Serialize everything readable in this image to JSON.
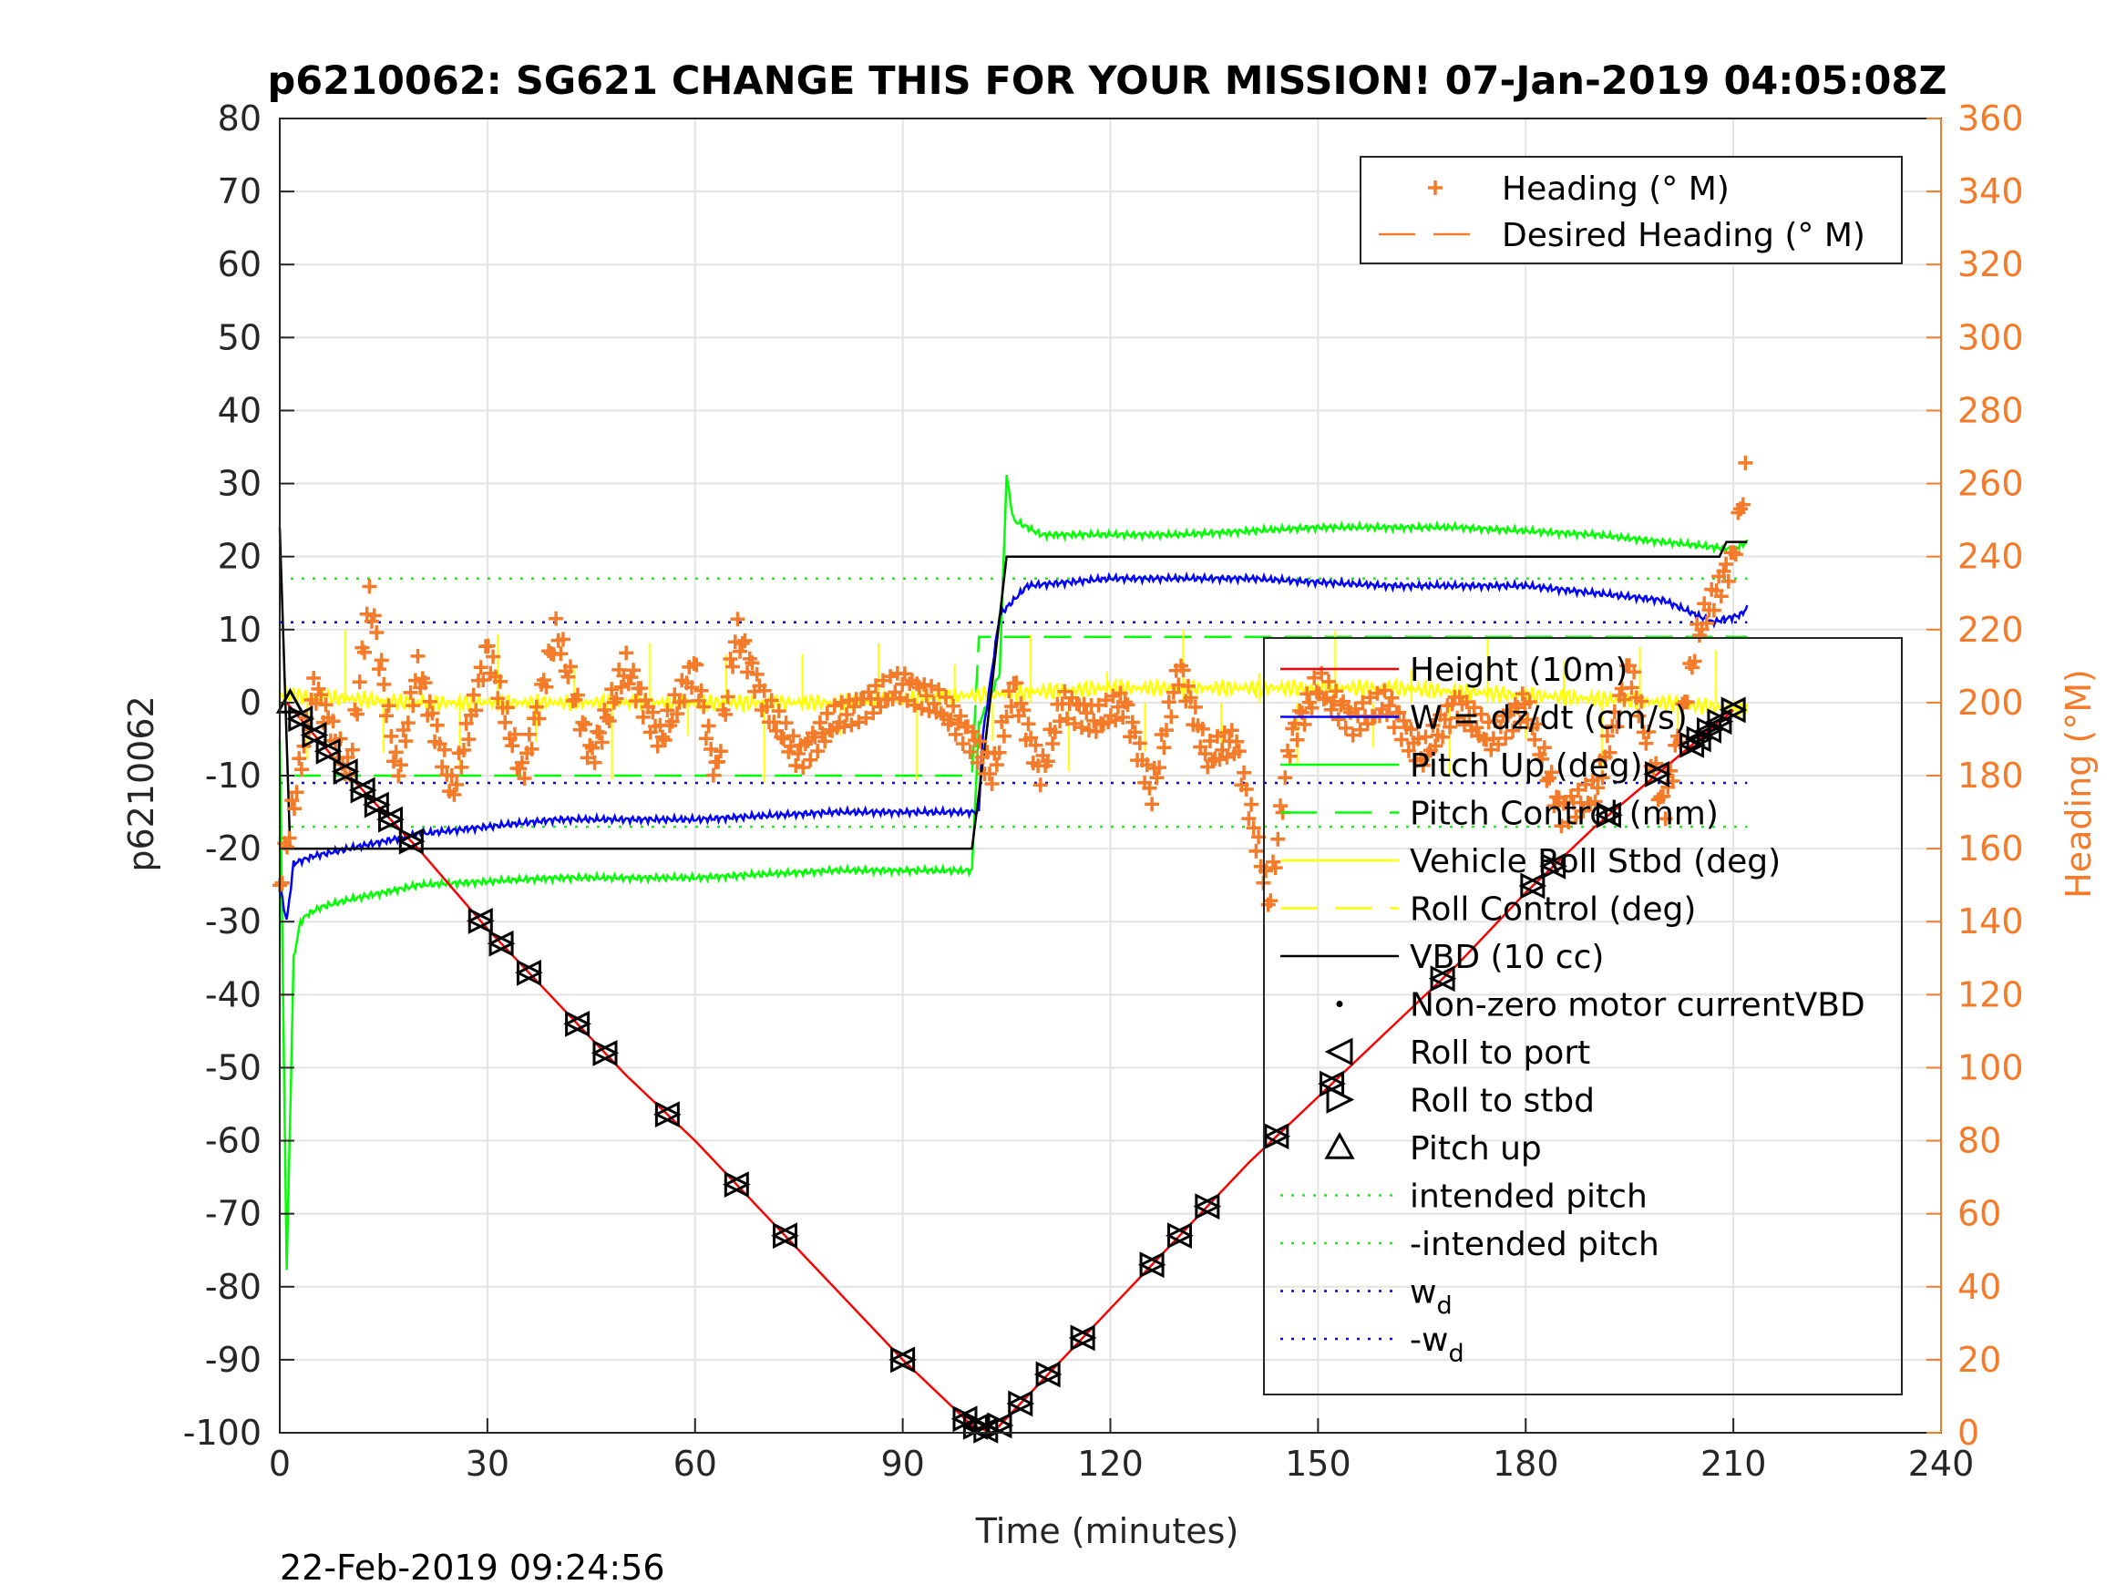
{
  "chart_data": {
    "type": "line",
    "title": "p6210062: SG621 CHANGE THIS FOR YOUR MISSION! 07-Jan-2019 04:05:08Z",
    "xlabel": "Time (minutes)",
    "ylabel": "p6210062",
    "y2label": "Heading (°M)",
    "xlim": [
      0,
      240
    ],
    "ylim": [
      -100,
      80
    ],
    "y2lim": [
      0,
      360
    ],
    "xticks": [
      "0",
      "30",
      "60",
      "90",
      "120",
      "150",
      "180",
      "210",
      "240"
    ],
    "yticks": [
      "80",
      "70",
      "60",
      "50",
      "40",
      "30",
      "20",
      "10",
      "0",
      "-10",
      "-20",
      "-30",
      "-40",
      "-50",
      "-60",
      "-70",
      "-80",
      "-90",
      "-100"
    ],
    "y2ticks": [
      "360",
      "340",
      "320",
      "300",
      "280",
      "260",
      "240",
      "220",
      "200",
      "180",
      "160",
      "140",
      "120",
      "100",
      "80",
      "60",
      "40",
      "20",
      "0"
    ],
    "grid": true,
    "footer": "22-Feb-2019 09:24:56",
    "colors": {
      "height": "#ff0000",
      "w": "#0000ff",
      "pitch": "#00ff00",
      "roll": "#ffff00",
      "vbd": "#000000",
      "heading": "#f47b2a"
    },
    "legend_left": {
      "placement": "top-right",
      "entries": [
        "Heading (° M)",
        "Desired Heading (° M)"
      ]
    },
    "legend_right": {
      "placement": "center-right",
      "entries": [
        "Height (10m)",
        "W = dz/dt (cm/s)",
        "Pitch Up (deg)",
        "Pitch Control (mm)",
        "Vehicle Roll Stbd (deg)",
        "Roll Control (deg)",
        "VBD (10 cc)",
        "Non-zero motor currentVBD",
        "Roll to port",
        "Roll to stbd",
        "Pitch up",
        "intended pitch",
        "-intended pitch",
        "w",
        "-w"
      ],
      "subscript": "d"
    },
    "reference_lines": {
      "intended_pitch": 17,
      "w_d": 11
    },
    "series": [
      {
        "name": "Height (10m)",
        "x": [
          1,
          10,
          20,
          30,
          40,
          50,
          60,
          70,
          80,
          90,
          100,
          103,
          110,
          120,
          130,
          140,
          150,
          160,
          170,
          180,
          190,
          200,
          210
        ],
        "y": [
          0,
          -10,
          -20,
          -31,
          -41,
          -51,
          -60,
          -70,
          -80,
          -90,
          -99,
          -100,
          -93,
          -83,
          -73,
          -63,
          -54,
          -45,
          -36,
          -26,
          -17,
          -9,
          -1
        ]
      },
      {
        "name": "W = dz/dt (cm/s)",
        "x": [
          0,
          1,
          2,
          5,
          10,
          20,
          30,
          40,
          60,
          80,
          90,
          101,
          101.5,
          104,
          108,
          120,
          140,
          160,
          180,
          200,
          207,
          211,
          212
        ],
        "y": [
          -25,
          -30,
          -22,
          -21,
          -20,
          -18,
          -17,
          -16,
          -16,
          -15,
          -15,
          -15,
          -5,
          12,
          16,
          17,
          17,
          16,
          16,
          14,
          11,
          12,
          13
        ]
      },
      {
        "name": "Pitch Up (deg)",
        "x": [
          0,
          1,
          2,
          3,
          4,
          6,
          10,
          20,
          40,
          60,
          80,
          100,
          101,
          104,
          105,
          106,
          110,
          130,
          150,
          170,
          190,
          200,
          210,
          212
        ],
        "y": [
          -5,
          -78,
          -35,
          -30,
          -29,
          -28,
          -27,
          -25,
          -24,
          -24,
          -23,
          -23,
          -3,
          4,
          31,
          25,
          23,
          23,
          24,
          24,
          23,
          22,
          21,
          22
        ]
      },
      {
        "name": "Pitch Control (mm)",
        "x": [
          2,
          100,
          101,
          212
        ],
        "y": [
          -10,
          -10,
          9,
          9
        ]
      },
      {
        "name": "Vehicle Roll Stbd (deg)",
        "x": [
          0,
          20,
          40,
          60,
          80,
          100,
          120,
          140,
          160,
          180,
          200,
          212
        ],
        "y": [
          1,
          0,
          0,
          0,
          0,
          1,
          2,
          2,
          2,
          1,
          0,
          -1
        ]
      },
      {
        "name": "VBD (10 cc)",
        "x": [
          0,
          1.5,
          100,
          102,
          105,
          208,
          209,
          212
        ],
        "y": [
          24,
          -20,
          -20,
          -5,
          20,
          20,
          22,
          22
        ]
      },
      {
        "name": "Heading (° M)",
        "x": [
          0,
          5,
          10,
          13,
          17,
          20,
          25,
          30,
          35,
          40,
          45,
          50,
          55,
          60,
          63,
          66,
          70,
          75,
          80,
          85,
          90,
          95,
          100,
          103,
          106,
          110,
          113,
          118,
          122,
          126,
          130,
          134,
          138,
          143,
          146,
          150,
          155,
          160,
          165,
          170,
          175,
          180,
          185,
          190,
          195,
          200,
          205,
          210,
          212
        ],
        "y": [
          150,
          205,
          180,
          230,
          180,
          210,
          175,
          215,
          180,
          220,
          185,
          210,
          190,
          210,
          180,
          220,
          200,
          185,
          195,
          200,
          205,
          200,
          190,
          180,
          205,
          180,
          200,
          195,
          200,
          175,
          210,
          185,
          190,
          145,
          190,
          205,
          195,
          200,
          185,
          200,
          190,
          200,
          170,
          175,
          210,
          170,
          220,
          240,
          265
        ]
      }
    ]
  }
}
